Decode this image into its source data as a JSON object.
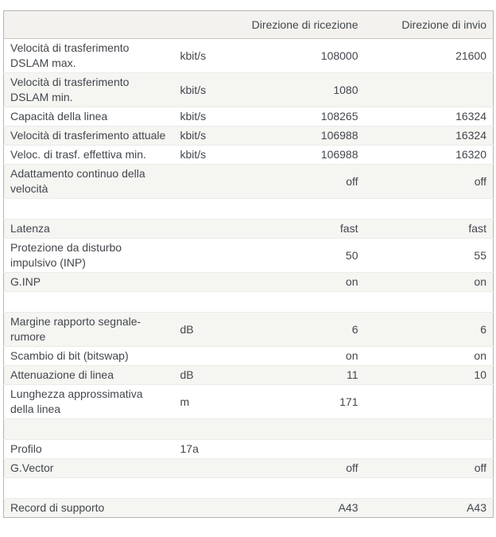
{
  "table": {
    "headers": {
      "label": "",
      "unit": "",
      "rx": "Direzione di ricezione",
      "tx": "Direzione di invio"
    },
    "rows": [
      {
        "label": "Velocità di trasferimento DSLAM max.",
        "unit": "kbit/s",
        "rx": "108000",
        "tx": "21600"
      },
      {
        "label": "Velocità di trasferimento DSLAM min.",
        "unit": "kbit/s",
        "rx": "1080",
        "tx": ""
      },
      {
        "label": "Capacità della linea",
        "unit": "kbit/s",
        "rx": "108265",
        "tx": "16324"
      },
      {
        "label": "Velocità di trasferimento attuale",
        "unit": "kbit/s",
        "rx": "106988",
        "tx": "16324"
      },
      {
        "label": "Veloc. di trasf. effettiva min.",
        "unit": "kbit/s",
        "rx": "106988",
        "tx": "16320"
      },
      {
        "label": "Adattamento continuo della velocità",
        "unit": "",
        "rx": "off",
        "tx": "off"
      },
      {
        "spacer": true,
        "label": "",
        "unit": "",
        "rx": "",
        "tx": ""
      },
      {
        "label": "Latenza",
        "unit": "",
        "rx": "fast",
        "tx": "fast"
      },
      {
        "label": "Protezione da disturbo impulsivo (INP)",
        "unit": "",
        "rx": "50",
        "tx": "55"
      },
      {
        "label": "G.INP",
        "unit": "",
        "rx": "on",
        "tx": "on"
      },
      {
        "spacer": true,
        "label": "",
        "unit": "",
        "rx": "",
        "tx": ""
      },
      {
        "label": "Margine rapporto segnale-rumore",
        "unit": "dB",
        "rx": "6",
        "tx": "6"
      },
      {
        "label": "Scambio di bit (bitswap)",
        "unit": "",
        "rx": "on",
        "tx": "on"
      },
      {
        "label": "Attenuazione di linea",
        "unit": "dB",
        "rx": "11",
        "tx": "10"
      },
      {
        "label": "Lunghezza approssimativa della linea",
        "unit": "m",
        "rx": "171",
        "tx": ""
      },
      {
        "spacer": true,
        "label": "",
        "unit": "",
        "rx": "",
        "tx": ""
      },
      {
        "label": "Profilo",
        "unit": "17a",
        "rx": "",
        "tx": ""
      },
      {
        "label": "G.Vector",
        "unit": "",
        "rx": "off",
        "tx": "off"
      },
      {
        "spacer": true,
        "label": "",
        "unit": "",
        "rx": "",
        "tx": ""
      },
      {
        "label": "Record di supporto",
        "unit": "",
        "rx": "A43",
        "tx": "A43"
      }
    ],
    "colors": {
      "row_stripe": "#f5f5f2",
      "header_bg": "#f3f2ee",
      "outer_border": "#b6b6ae",
      "text": "#42474c"
    }
  }
}
